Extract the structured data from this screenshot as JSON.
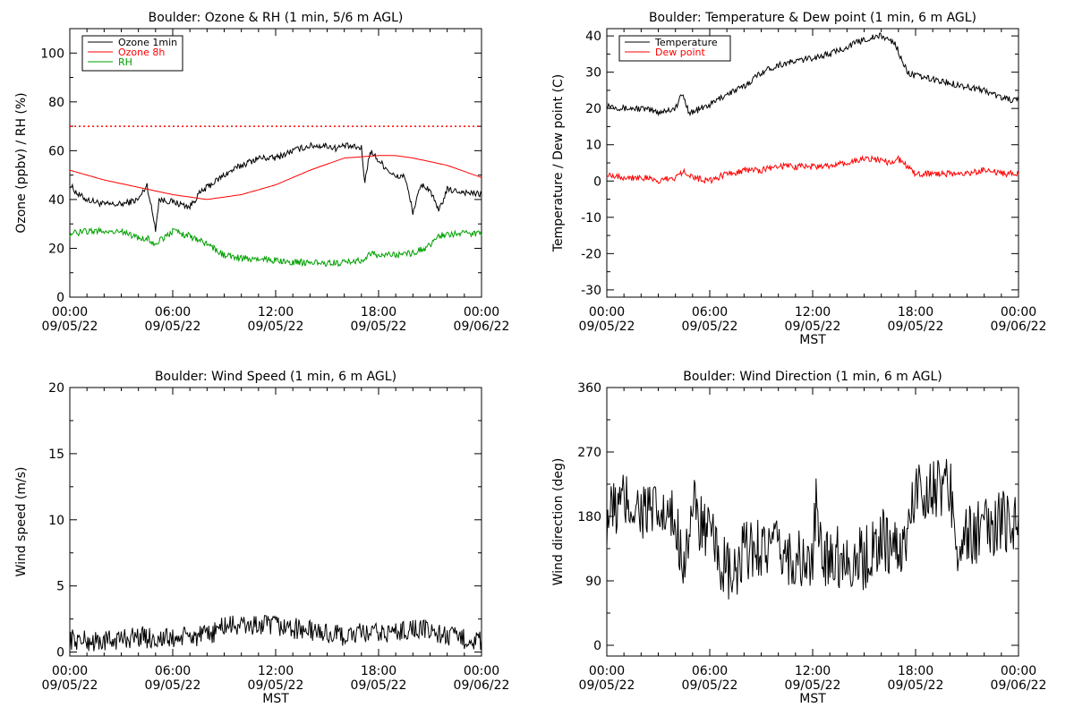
{
  "chart_data": [
    {
      "type": "line",
      "title": "Boulder: Ozone & RH (1 min, 5/6 m AGL)",
      "xlabel": "",
      "ylabel": "Ozone (ppbv) / RH (%)",
      "xlim": [
        "09/05/22 00:00",
        "09/06/22 00:00"
      ],
      "x_ticks": [
        [
          "00:00",
          "09/05/22"
        ],
        [
          "06:00",
          "09/05/22"
        ],
        [
          "12:00",
          "09/05/22"
        ],
        [
          "18:00",
          "09/05/22"
        ],
        [
          "00:00",
          "09/06/22"
        ]
      ],
      "ylim": [
        0,
        110
      ],
      "y_ticks": [
        0,
        20,
        40,
        60,
        80,
        100
      ],
      "legend_position": "top-left",
      "reference_line": {
        "y": 70,
        "style": "dotted",
        "color": "#ff0000"
      },
      "series": [
        {
          "name": "Ozone 1min",
          "color": "#000000",
          "x": [
            0,
            0.5,
            1,
            2,
            3,
            4,
            4.5,
            4.8,
            5,
            5.2,
            6,
            7,
            7.5,
            8,
            9,
            10,
            11,
            12,
            13,
            14,
            15,
            15.5,
            16,
            17,
            17.2,
            17.5,
            18,
            19,
            19.5,
            20,
            20.5,
            21,
            21.5,
            22,
            23,
            24
          ],
          "values": [
            46,
            42,
            40,
            38,
            38,
            40,
            46,
            35,
            28,
            40,
            39,
            37,
            42,
            45,
            50,
            54,
            57,
            57,
            60,
            62,
            62,
            61,
            62,
            61,
            47,
            60,
            56,
            49,
            50,
            35,
            46,
            44,
            35,
            44,
            43,
            42
          ]
        },
        {
          "name": "Ozone 8h",
          "color": "#ff0000",
          "x": [
            0,
            2,
            4,
            6,
            8,
            10,
            12,
            14,
            16,
            18,
            19,
            20,
            22,
            24
          ],
          "values": [
            52,
            48,
            45,
            42,
            40,
            42,
            46,
            52,
            57,
            58,
            58,
            57,
            54,
            49
          ]
        },
        {
          "name": "RH",
          "color": "#00a000",
          "x": [
            0,
            1,
            2,
            3,
            4,
            4.5,
            5,
            6,
            7,
            8,
            9,
            10,
            12,
            14,
            15,
            16,
            17,
            17.5,
            18,
            20,
            21,
            21.5,
            22,
            23,
            24
          ],
          "values": [
            26,
            27,
            27,
            27,
            24,
            24,
            22,
            27,
            25,
            22,
            17,
            16,
            15,
            14,
            14,
            14,
            15,
            18,
            17,
            18,
            21,
            25,
            26,
            26,
            26
          ]
        }
      ]
    },
    {
      "type": "line",
      "title": "Boulder: Temperature & Dew point (1 min, 6 m AGL)",
      "xlabel": "MST",
      "ylabel": "Temperature / Dew point (C)",
      "xlim": [
        "09/05/22 00:00",
        "09/06/22 00:00"
      ],
      "x_ticks": [
        [
          "00:00",
          "09/05/22"
        ],
        [
          "06:00",
          "09/05/22"
        ],
        [
          "12:00",
          "09/05/22"
        ],
        [
          "18:00",
          "09/05/22"
        ],
        [
          "00:00",
          "09/06/22"
        ]
      ],
      "ylim": [
        -32,
        42
      ],
      "y_ticks": [
        -30,
        -20,
        -10,
        0,
        10,
        20,
        30,
        40
      ],
      "legend_position": "top-left",
      "series": [
        {
          "name": "Temperature",
          "color": "#000000",
          "x": [
            0,
            1,
            2,
            3,
            4,
            4.4,
            4.8,
            5,
            6,
            7,
            8,
            9,
            10,
            11,
            12,
            13,
            14,
            15,
            16,
            16.8,
            17.5,
            18,
            19,
            20,
            21,
            22,
            23,
            24
          ],
          "values": [
            21,
            20,
            20,
            19,
            20,
            24,
            19,
            19,
            21,
            24,
            26,
            30,
            32,
            33,
            34,
            35,
            37,
            39,
            40,
            38,
            30,
            29,
            28,
            27,
            26,
            25,
            23,
            22
          ]
        },
        {
          "name": "Dew point",
          "color": "#ff0000",
          "x": [
            0,
            1,
            2,
            3,
            4,
            4.5,
            5,
            6,
            7,
            8,
            9,
            10,
            11,
            12,
            13,
            14,
            15,
            16,
            16.5,
            17,
            17.5,
            18,
            19,
            20,
            21,
            22,
            23,
            24
          ],
          "values": [
            2,
            1,
            1,
            0,
            1,
            3,
            1,
            0,
            2,
            3,
            3,
            4,
            4,
            4,
            4,
            5,
            6,
            6,
            5,
            6,
            4,
            2,
            2,
            2,
            2,
            3,
            2,
            2
          ]
        }
      ]
    },
    {
      "type": "line",
      "title": "Boulder: Wind Speed (1 min, 6 m AGL)",
      "xlabel": "MST",
      "ylabel": "Wind speed (m/s)",
      "xlim": [
        "09/05/22 00:00",
        "09/06/22 00:00"
      ],
      "x_ticks": [
        [
          "00:00",
          "09/05/22"
        ],
        [
          "06:00",
          "09/05/22"
        ],
        [
          "12:00",
          "09/05/22"
        ],
        [
          "18:00",
          "09/05/22"
        ],
        [
          "00:00",
          "09/06/22"
        ]
      ],
      "ylim": [
        -0.3,
        20
      ],
      "y_ticks": [
        0,
        5,
        10,
        15,
        20
      ],
      "series": [
        {
          "name": "",
          "color": "#000000",
          "x": [
            0,
            1,
            2,
            3,
            4,
            5,
            6,
            7,
            8,
            9,
            10,
            11,
            12,
            13,
            14,
            15,
            16,
            17,
            18,
            19,
            20,
            21,
            22,
            23,
            24
          ],
          "values": [
            1.0,
            0.8,
            0.8,
            1.0,
            1.2,
            1.0,
            1.0,
            1.2,
            1.2,
            2.0,
            2.0,
            2.0,
            2.0,
            1.8,
            1.6,
            1.4,
            1.2,
            1.4,
            1.4,
            1.5,
            1.8,
            1.6,
            1.2,
            1.0,
            0.8
          ]
        }
      ]
    },
    {
      "type": "line",
      "title": "Boulder: Wind Direction (1 min, 6 m AGL)",
      "xlabel": "MST",
      "ylabel": "Wind direction (deg)",
      "xlim": [
        "09/05/22 00:00",
        "09/06/22 00:00"
      ],
      "x_ticks": [
        [
          "00:00",
          "09/05/22"
        ],
        [
          "06:00",
          "09/05/22"
        ],
        [
          "12:00",
          "09/05/22"
        ],
        [
          "18:00",
          "09/05/22"
        ],
        [
          "00:00",
          "09/06/22"
        ]
      ],
      "ylim": [
        -15,
        360
      ],
      "y_ticks": [
        0,
        90,
        180,
        270,
        360
      ],
      "series": [
        {
          "name": "",
          "color": "#000000",
          "x": [
            0,
            1,
            2,
            3,
            4,
            4.5,
            5,
            6,
            7,
            7.5,
            8,
            9,
            10,
            11,
            12,
            12.2,
            12.5,
            13,
            14,
            15,
            16,
            17,
            17.5,
            18,
            19,
            20,
            20.5,
            21,
            22,
            23,
            24
          ],
          "values": [
            180,
            200,
            190,
            180,
            170,
            120,
            190,
            150,
            100,
            90,
            130,
            140,
            130,
            120,
            110,
            200,
            120,
            130,
            120,
            120,
            150,
            130,
            150,
            220,
            220,
            220,
            140,
            150,
            160,
            170,
            180
          ]
        }
      ]
    }
  ]
}
